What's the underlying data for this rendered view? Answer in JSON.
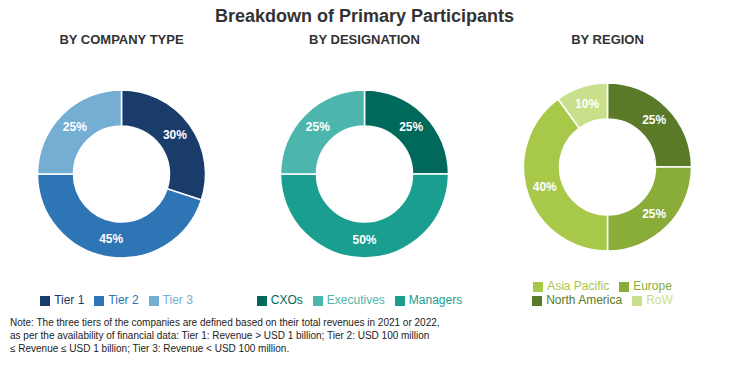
{
  "title": "Breakdown of Primary Participants",
  "chart_data": [
    {
      "type": "pie",
      "subtitle": "BY COMPANY TYPE",
      "categories": [
        "Tier 1",
        "Tier 2",
        "Tier 3"
      ],
      "values": [
        30,
        45,
        25
      ],
      "value_labels": [
        "30%",
        "45%",
        "25%"
      ],
      "colors": [
        "#1a3c6b",
        "#2e75b6",
        "#74afd3"
      ],
      "data_labels": true,
      "legend": "bottom"
    },
    {
      "type": "pie",
      "subtitle": "BY DESIGNATION",
      "categories": [
        "CXOs",
        "Managers",
        "Executives"
      ],
      "values": [
        25,
        50,
        25
      ],
      "value_labels": [
        "25%",
        "50%",
        "25%"
      ],
      "colors": [
        "#00695c",
        "#1a9e8f",
        "#4db6ac"
      ],
      "data_labels": true,
      "legend": "bottom"
    },
    {
      "type": "pie",
      "subtitle": "BY REGION",
      "categories": [
        "North America",
        "Europe",
        "Asia Pacific",
        "RoW"
      ],
      "values": [
        25,
        25,
        40,
        10
      ],
      "value_labels": [
        "25%",
        "25%",
        "40%",
        "10%"
      ],
      "colors": [
        "#5a7a28",
        "#8aad3a",
        "#a8c84a",
        "#c8df8c"
      ],
      "data_labels": true,
      "legend": "bottom"
    }
  ],
  "annotations": [
    "Note: The three tiers of the companies are defined based on their total revenues in 2021 or 2022,\nas per the availability of financial data: Tier 1: Revenue > USD 1 billion; Tier 2: USD 100 million\n≤ Revenue ≤ USD 1 billion; Tier 3: Revenue < USD 100 million."
  ]
}
